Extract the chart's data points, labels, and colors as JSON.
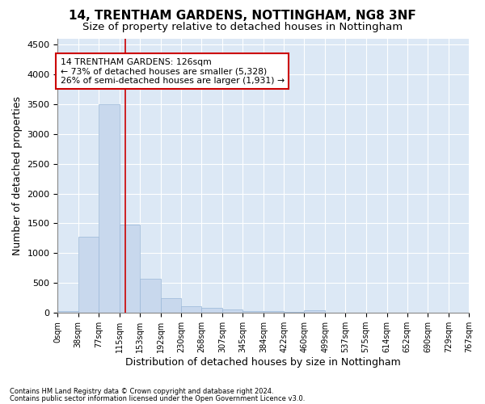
{
  "title": "14, TRENTHAM GARDENS, NOTTINGHAM, NG8 3NF",
  "subtitle": "Size of property relative to detached houses in Nottingham",
  "xlabel": "Distribution of detached houses by size in Nottingham",
  "ylabel": "Number of detached properties",
  "bar_color": "#c8d8ed",
  "bar_edge_color": "#9ab8d8",
  "vline_color": "#cc0000",
  "vline_x": 126,
  "annotation_line1": "14 TRENTHAM GARDENS: 126sqm",
  "annotation_line2": "← 73% of detached houses are smaller (5,328)",
  "annotation_line3": "26% of semi-detached houses are larger (1,931) →",
  "annotation_box_color": "#cc0000",
  "footnote1": "Contains HM Land Registry data © Crown copyright and database right 2024.",
  "footnote2": "Contains public sector information licensed under the Open Government Licence v3.0.",
  "bin_edges": [
    0,
    38,
    77,
    115,
    153,
    192,
    230,
    268,
    307,
    345,
    384,
    422,
    460,
    499,
    537,
    575,
    614,
    652,
    690,
    729,
    767
  ],
  "bar_heights": [
    35,
    1270,
    3500,
    1480,
    570,
    240,
    115,
    80,
    55,
    30,
    30,
    20,
    50,
    5,
    3,
    2,
    2,
    2,
    2,
    2
  ],
  "ylim": [
    0,
    4600
  ],
  "yticks": [
    0,
    500,
    1000,
    1500,
    2000,
    2500,
    3000,
    3500,
    4000,
    4500
  ],
  "figure_bg": "#ffffff",
  "plot_bg_color": "#dce8f5",
  "grid_color": "#ffffff",
  "title_fontsize": 11,
  "subtitle_fontsize": 9.5
}
